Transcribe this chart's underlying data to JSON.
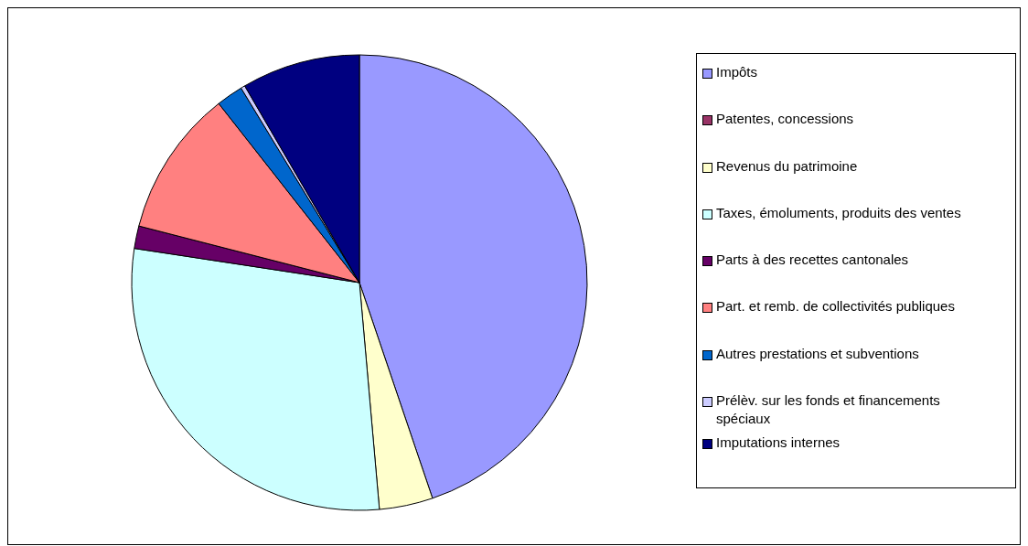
{
  "chart_data": {
    "type": "pie",
    "categories": [
      "Impôts",
      "Patentes, concessions",
      "Revenus du patrimoine",
      "Taxes, émoluments, produits des ventes",
      "Parts à des recettes cantonales",
      "Part. et remb. de collectivités publiques",
      "Autres prestations et subventions",
      "Prélèv. sur les fonds et financements spéciaux",
      "Imputations internes"
    ],
    "values": [
      44.8,
      null,
      3.8,
      28.8,
      1.6,
      10.4,
      1.9,
      0.3,
      8.4
    ],
    "colors": [
      "#9999ff",
      "#993366",
      "#ffffcc",
      "#ccffff",
      "#660066",
      "#ff8080",
      "#0066cc",
      "#ccccff",
      "#000080"
    ],
    "legend": "right"
  }
}
